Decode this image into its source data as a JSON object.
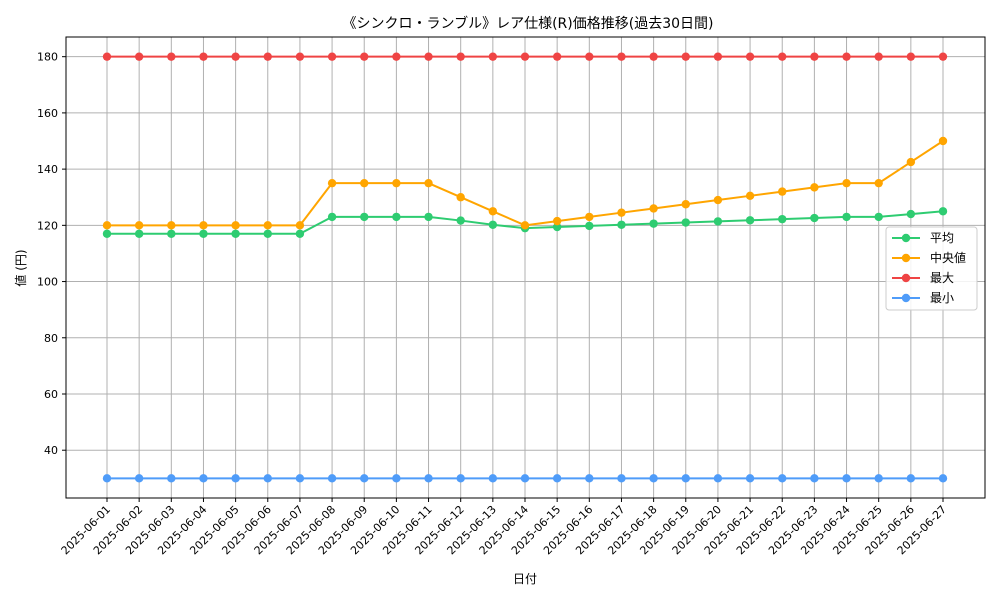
{
  "chart_data": {
    "type": "line",
    "title": "《シンクロ・ランブル》レア仕様(R)価格推移(過去30日間)",
    "xlabel": "日付",
    "ylabel": "値 (円)",
    "ylim": [
      23,
      187
    ],
    "yticks": [
      40,
      60,
      80,
      100,
      120,
      140,
      160,
      180
    ],
    "grid": true,
    "legend_position": "center-right",
    "x": [
      "2025-06-01",
      "2025-06-02",
      "2025-06-03",
      "2025-06-04",
      "2025-06-05",
      "2025-06-06",
      "2025-06-07",
      "2025-06-08",
      "2025-06-09",
      "2025-06-10",
      "2025-06-11",
      "2025-06-12",
      "2025-06-13",
      "2025-06-14",
      "2025-06-15",
      "2025-06-16",
      "2025-06-17",
      "2025-06-18",
      "2025-06-19",
      "2025-06-20",
      "2025-06-21",
      "2025-06-22",
      "2025-06-23",
      "2025-06-24",
      "2025-06-25",
      "2025-06-26",
      "2025-06-27"
    ],
    "series": [
      {
        "name": "平均",
        "color": "#2ecc71",
        "values": [
          117,
          117,
          117,
          117,
          117,
          117,
          117,
          123,
          123,
          123,
          123,
          121.7,
          120.2,
          119,
          119.4,
          119.8,
          120.2,
          120.6,
          121,
          121.4,
          121.8,
          122.2,
          122.6,
          123,
          123,
          124,
          125
        ]
      },
      {
        "name": "中央値",
        "color": "#ffa500",
        "values": [
          120,
          120,
          120,
          120,
          120,
          120,
          120,
          135,
          135,
          135,
          135,
          130,
          125,
          120,
          121.5,
          123,
          124.5,
          126,
          127.5,
          129,
          130.5,
          132,
          133.5,
          135,
          135,
          142.5,
          150
        ]
      },
      {
        "name": "最大",
        "color": "#ef4444",
        "values": [
          180,
          180,
          180,
          180,
          180,
          180,
          180,
          180,
          180,
          180,
          180,
          180,
          180,
          180,
          180,
          180,
          180,
          180,
          180,
          180,
          180,
          180,
          180,
          180,
          180,
          180,
          180
        ]
      },
      {
        "name": "最小",
        "color": "#4f9cf9",
        "values": [
          30,
          30,
          30,
          30,
          30,
          30,
          30,
          30,
          30,
          30,
          30,
          30,
          30,
          30,
          30,
          30,
          30,
          30,
          30,
          30,
          30,
          30,
          30,
          30,
          30,
          30,
          30
        ]
      }
    ]
  }
}
